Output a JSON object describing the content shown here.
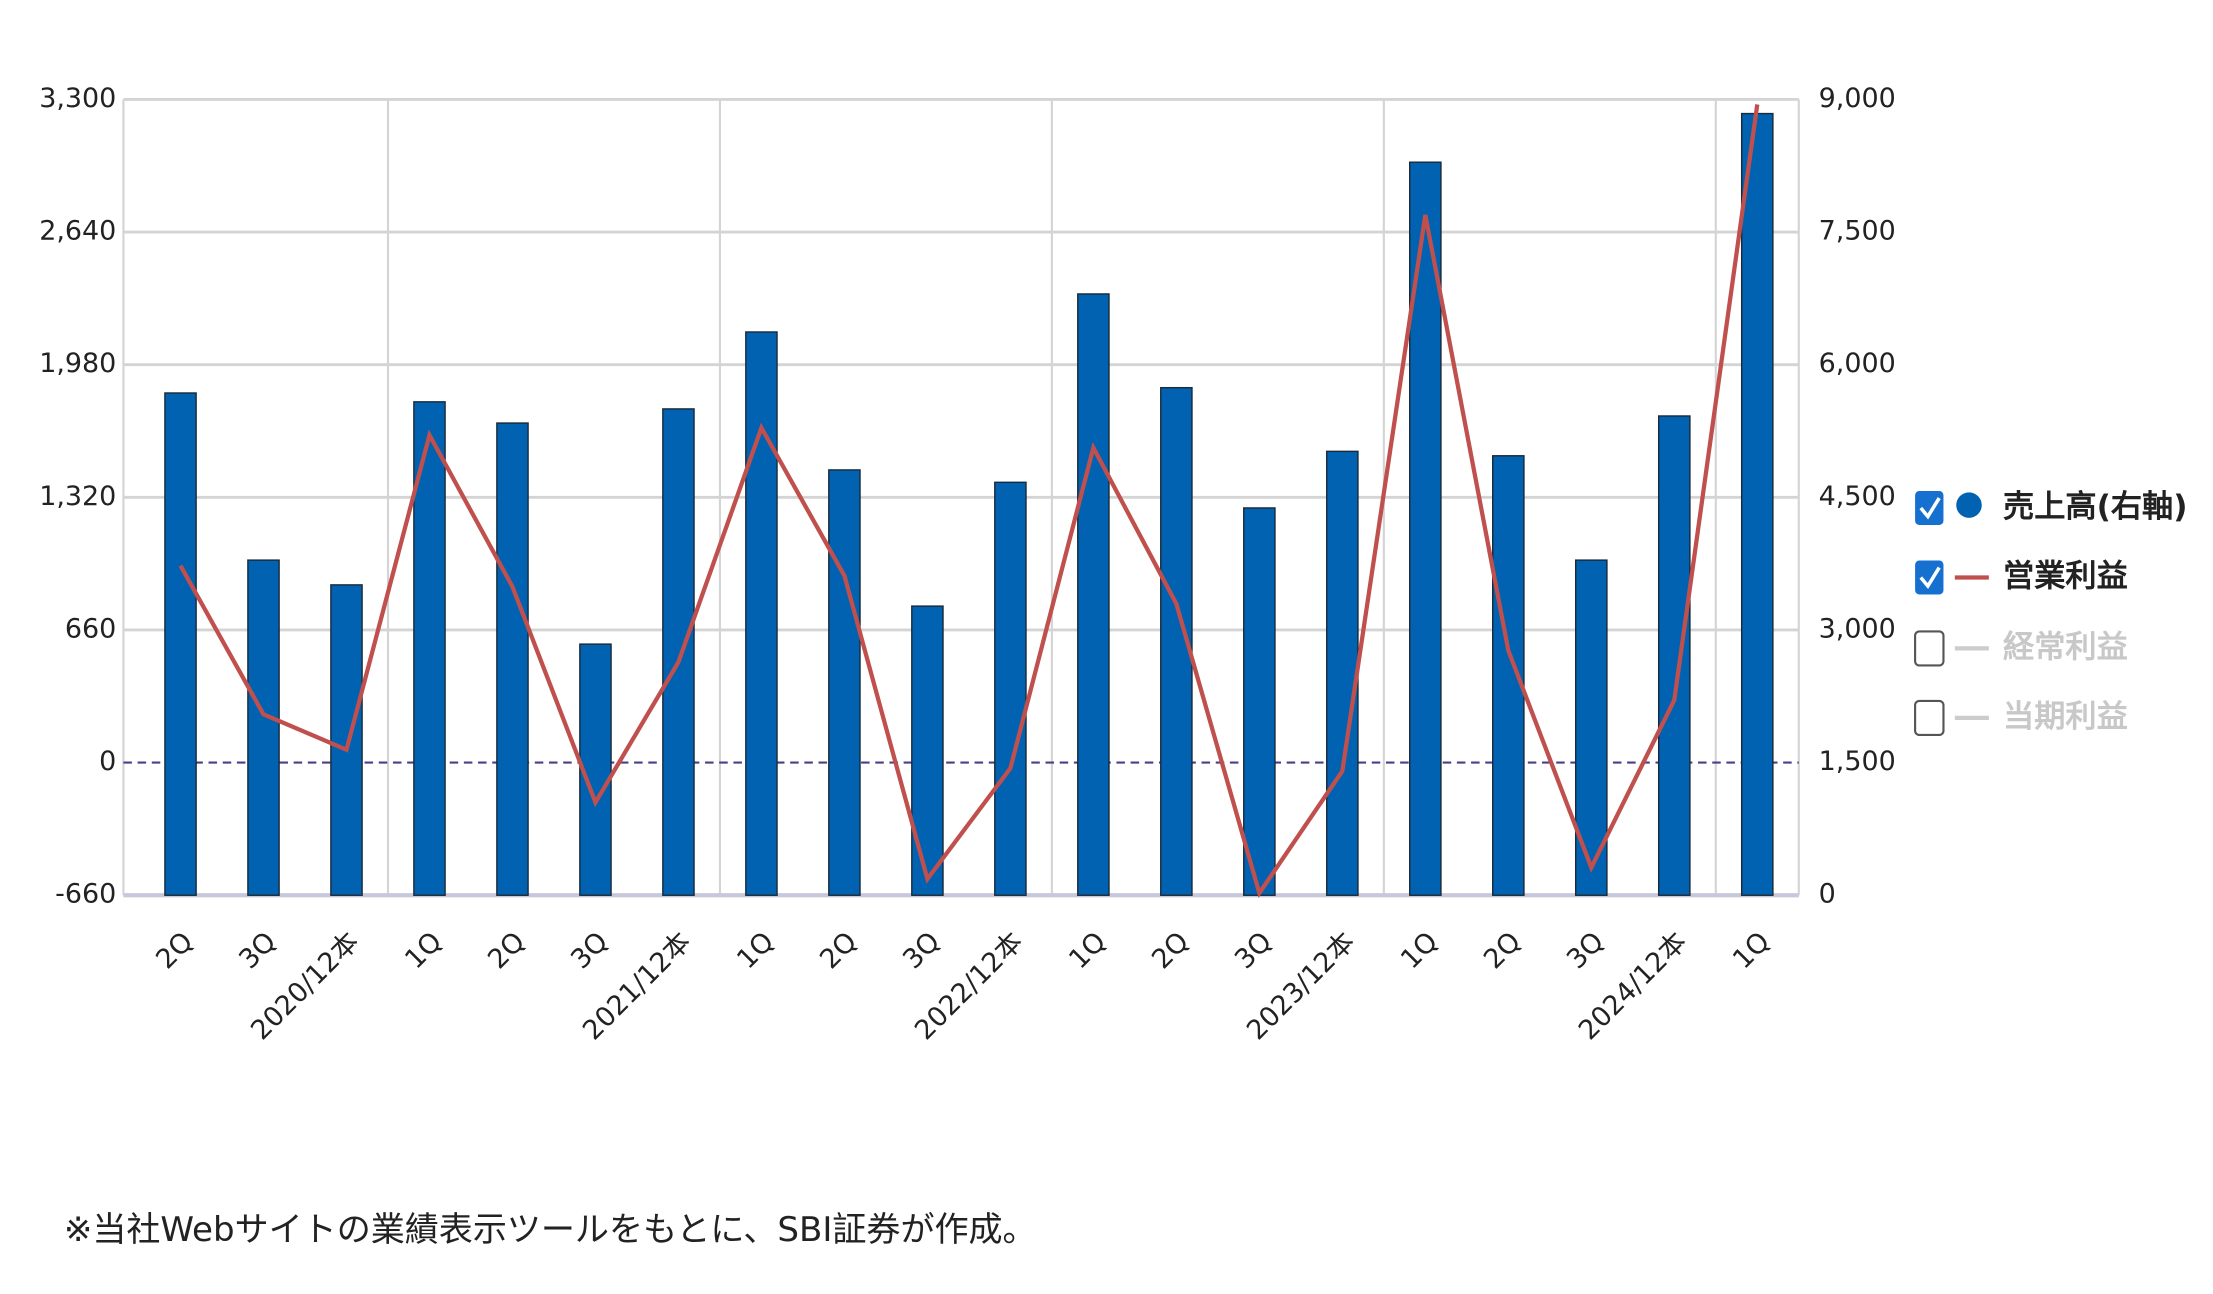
{
  "chart_data": {
    "type": "bar",
    "categories": [
      "2Q",
      "3Q",
      "2020/12本",
      "1Q",
      "2Q",
      "3Q",
      "2021/12本",
      "1Q",
      "2Q",
      "3Q",
      "2022/12本",
      "1Q",
      "2Q",
      "3Q",
      "2023/12本",
      "1Q",
      "2Q",
      "3Q",
      "2024/12本",
      "1Q"
    ],
    "series": [
      {
        "name": "売上高(右軸)",
        "type": "bar",
        "axis": "y2",
        "color": "#0062b0",
        "values": [
          5680,
          3790,
          3510,
          5580,
          5340,
          2840,
          5500,
          6370,
          4810,
          3270,
          4670,
          6800,
          5740,
          4380,
          5020,
          8290,
          4970,
          3790,
          5420,
          8840
        ]
      },
      {
        "name": "営業利益",
        "type": "line",
        "color": "#c0504d",
        "values": [
          980,
          240,
          64,
          1630,
          875,
          -198,
          500,
          1666,
          930,
          -579,
          -28,
          1567,
          790,
          -649,
          -42,
          2725,
          558,
          -522,
          311,
          3275
        ]
      }
    ],
    "inactive_legend": [
      "経常利益",
      "当期利益"
    ],
    "ylim": [
      -660,
      3300
    ],
    "yticks": [
      -660,
      0,
      660,
      {
        "value": 1320,
        "label": "1,320"
      },
      {
        "value": 1980,
        "label": "1,980"
      },
      {
        "value": 2640,
        "label": "2,640"
      },
      {
        "value": 3300,
        "label": "3,300"
      }
    ],
    "y2lim": [
      0,
      9000
    ],
    "y2ticks": [
      0,
      {
        "value": 1500,
        "label": "1,500"
      },
      {
        "value": 3000,
        "label": "3,000"
      },
      {
        "value": 4500,
        "label": "4,500"
      },
      {
        "value": 6000,
        "label": "6,000"
      },
      {
        "value": 7500,
        "label": "7,500"
      },
      {
        "value": 9000,
        "label": "9,000"
      }
    ],
    "grid": true,
    "note": "※当社Webサイトの業績表示ツールをもとに、SBI証券が作成。"
  }
}
